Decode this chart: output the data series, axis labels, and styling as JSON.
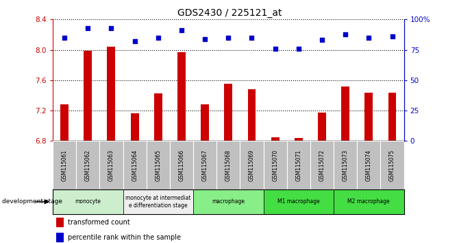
{
  "title": "GDS2430 / 225121_at",
  "samples": [
    "GSM115061",
    "GSM115062",
    "GSM115063",
    "GSM115064",
    "GSM115065",
    "GSM115066",
    "GSM115067",
    "GSM115068",
    "GSM115069",
    "GSM115070",
    "GSM115071",
    "GSM115072",
    "GSM115073",
    "GSM115074",
    "GSM115075"
  ],
  "bar_values": [
    7.28,
    7.99,
    8.04,
    7.16,
    7.43,
    7.97,
    7.28,
    7.55,
    7.48,
    6.85,
    6.84,
    7.17,
    7.52,
    7.44,
    7.44
  ],
  "dot_values": [
    85,
    93,
    93,
    82,
    85,
    91,
    84,
    85,
    85,
    76,
    76,
    83,
    88,
    85,
    86
  ],
  "bar_bottom": 6.8,
  "ylim": [
    6.8,
    8.4
  ],
  "y2lim": [
    0,
    100
  ],
  "yticks": [
    6.8,
    7.2,
    7.6,
    8.0,
    8.4
  ],
  "y2ticks": [
    0,
    25,
    50,
    75,
    100
  ],
  "bar_color": "#cc0000",
  "dot_color": "#0000cc",
  "tick_color_left": "#cc0000",
  "tick_color_right": "#0000cc",
  "stages": [
    {
      "label": "monocyte",
      "start": 0,
      "end": 3,
      "color": "#cceecc"
    },
    {
      "label": "monocyte at intermediat\ne differentiation stage",
      "start": 3,
      "end": 6,
      "color": "#eeeeee"
    },
    {
      "label": "macrophage",
      "start": 6,
      "end": 9,
      "color": "#88ee88"
    },
    {
      "label": "M1 macrophage",
      "start": 9,
      "end": 12,
      "color": "#44dd44"
    },
    {
      "label": "M2 macrophage",
      "start": 12,
      "end": 15,
      "color": "#44dd44"
    }
  ],
  "dev_stage_label": "development stage",
  "legend_bar_label": "transformed count",
  "legend_dot_label": "percentile rank within the sample",
  "plot_bg_color": "#ffffff",
  "tick_label_bg": "#c0c0c0"
}
